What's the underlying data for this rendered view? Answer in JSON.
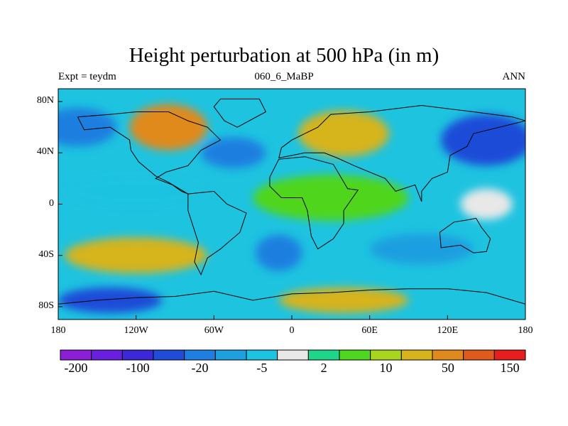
{
  "title": "Height perturbation at 500 hPa (in m)",
  "left_subtitle": "Expt = teydm",
  "center_subtitle": "060_6_MaBP",
  "right_subtitle": "ANN",
  "axes": {
    "y_ticks": [
      {
        "label": "80N",
        "lat": 80
      },
      {
        "label": "40N",
        "lat": 40
      },
      {
        "label": "0",
        "lat": 0
      },
      {
        "label": "40S",
        "lat": -40
      },
      {
        "label": "80S",
        "lat": -80
      }
    ],
    "x_ticks": [
      {
        "label": "180",
        "lon": -180
      },
      {
        "label": "120W",
        "lon": -120
      },
      {
        "label": "60W",
        "lon": -60
      },
      {
        "label": "0",
        "lon": 0
      },
      {
        "label": "60E",
        "lon": 60
      },
      {
        "label": "120E",
        "lon": 120
      },
      {
        "label": "180",
        "lon": 180
      }
    ],
    "lat_range": [
      -90,
      90
    ],
    "lon_range": [
      -180,
      180
    ]
  },
  "colorbar": {
    "colors": [
      "#8a1fd6",
      "#6a1ee0",
      "#3c28d8",
      "#1f4cd8",
      "#1e7fe0",
      "#1e9fe0",
      "#1ec3e0",
      "#e8e8e8",
      "#1ed68a",
      "#4fd61e",
      "#a8d61e",
      "#d6b41e",
      "#e08a1e",
      "#e05a1e",
      "#e81e1e"
    ],
    "labels": [
      {
        "text": "-200",
        "boundary": 1
      },
      {
        "text": "-100",
        "boundary": 3
      },
      {
        "text": "-20",
        "boundary": 5
      },
      {
        "text": "-5",
        "boundary": 7
      },
      {
        "text": "2",
        "boundary": 9
      },
      {
        "text": "10",
        "boundary": 11
      },
      {
        "text": "50",
        "boundary": 13
      },
      {
        "text": "150",
        "boundary": 15
      }
    ]
  },
  "field_regions": [
    {
      "name": "north-pacific-low",
      "lon": -165,
      "lat": 60,
      "rlon": 30,
      "rlat": 15,
      "level": 4
    },
    {
      "name": "north-america-high",
      "lon": -95,
      "lat": 60,
      "rlon": 30,
      "rlat": 18,
      "level": 12
    },
    {
      "name": "north-atlantic-low",
      "lon": -45,
      "lat": 40,
      "rlon": 25,
      "rlat": 12,
      "level": 4
    },
    {
      "name": "europe-high",
      "lon": 40,
      "lat": 55,
      "rlon": 35,
      "rlat": 18,
      "level": 11
    },
    {
      "name": "siberia-low",
      "lon": 150,
      "lat": 50,
      "rlon": 35,
      "rlat": 20,
      "level": 3
    },
    {
      "name": "tropical-band-west",
      "lon": -120,
      "lat": 10,
      "rlon": 55,
      "rlat": 12,
      "level": 6
    },
    {
      "name": "africa-tropics",
      "lon": 30,
      "lat": 5,
      "rlon": 60,
      "rlat": 18,
      "level": 9
    },
    {
      "name": "south-pacific-high",
      "lon": -120,
      "lat": -40,
      "rlon": 55,
      "rlat": 14,
      "level": 11
    },
    {
      "name": "south-atlantic-low",
      "lon": -10,
      "lat": -38,
      "rlon": 18,
      "rlat": 14,
      "level": 4
    },
    {
      "name": "indian-ocean-low",
      "lon": 100,
      "lat": -35,
      "rlon": 40,
      "rlat": 12,
      "level": 5
    },
    {
      "name": "antarctic-west-low",
      "lon": -140,
      "lat": -75,
      "rlon": 40,
      "rlat": 10,
      "level": 3
    },
    {
      "name": "antarctic-east-high",
      "lon": 40,
      "lat": -75,
      "rlon": 50,
      "rlat": 10,
      "level": 11
    },
    {
      "name": "pacific-neutral",
      "lon": 150,
      "lat": 0,
      "rlon": 20,
      "rlat": 12,
      "level": 7
    }
  ]
}
